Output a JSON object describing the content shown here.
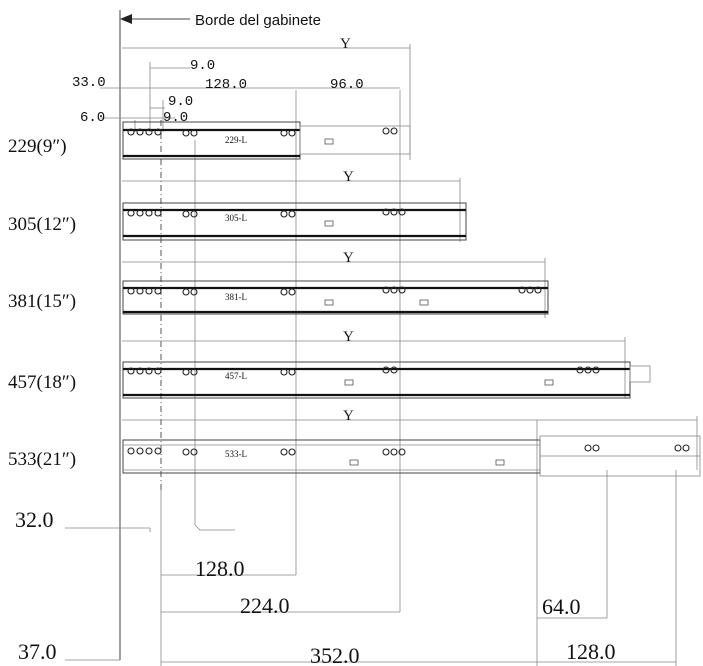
{
  "header": {
    "cabinet_edge_label": "Borde del gabinete"
  },
  "slides": [
    {
      "size_label": "229(9″)",
      "part_label": "229-L",
      "width_label": "Y"
    },
    {
      "size_label": "305(12″)",
      "part_label": "305-L",
      "width_label": "Y"
    },
    {
      "size_label": "381(15″)",
      "part_label": "381-L",
      "width_label": "Y"
    },
    {
      "size_label": "457(18″)",
      "part_label": "457-L",
      "width_label": "Y"
    },
    {
      "size_label": "533(21″)",
      "part_label": "533-L",
      "width_label": "Y"
    }
  ],
  "top_dimensions": {
    "d_9_top": "9.0",
    "d_33": "33.0",
    "d_128": "128.0",
    "d_96": "96.0",
    "d_9_mid": "9.0",
    "d_6": "6.0",
    "d_9_low": "9.0"
  },
  "bottom_dimensions": {
    "d_32": "32.0",
    "d_128": "128.0",
    "d_224": "224.0",
    "d_64": "64.0",
    "d_37": "37.0",
    "d_352": "352.0",
    "d_128_right": "128.0"
  }
}
